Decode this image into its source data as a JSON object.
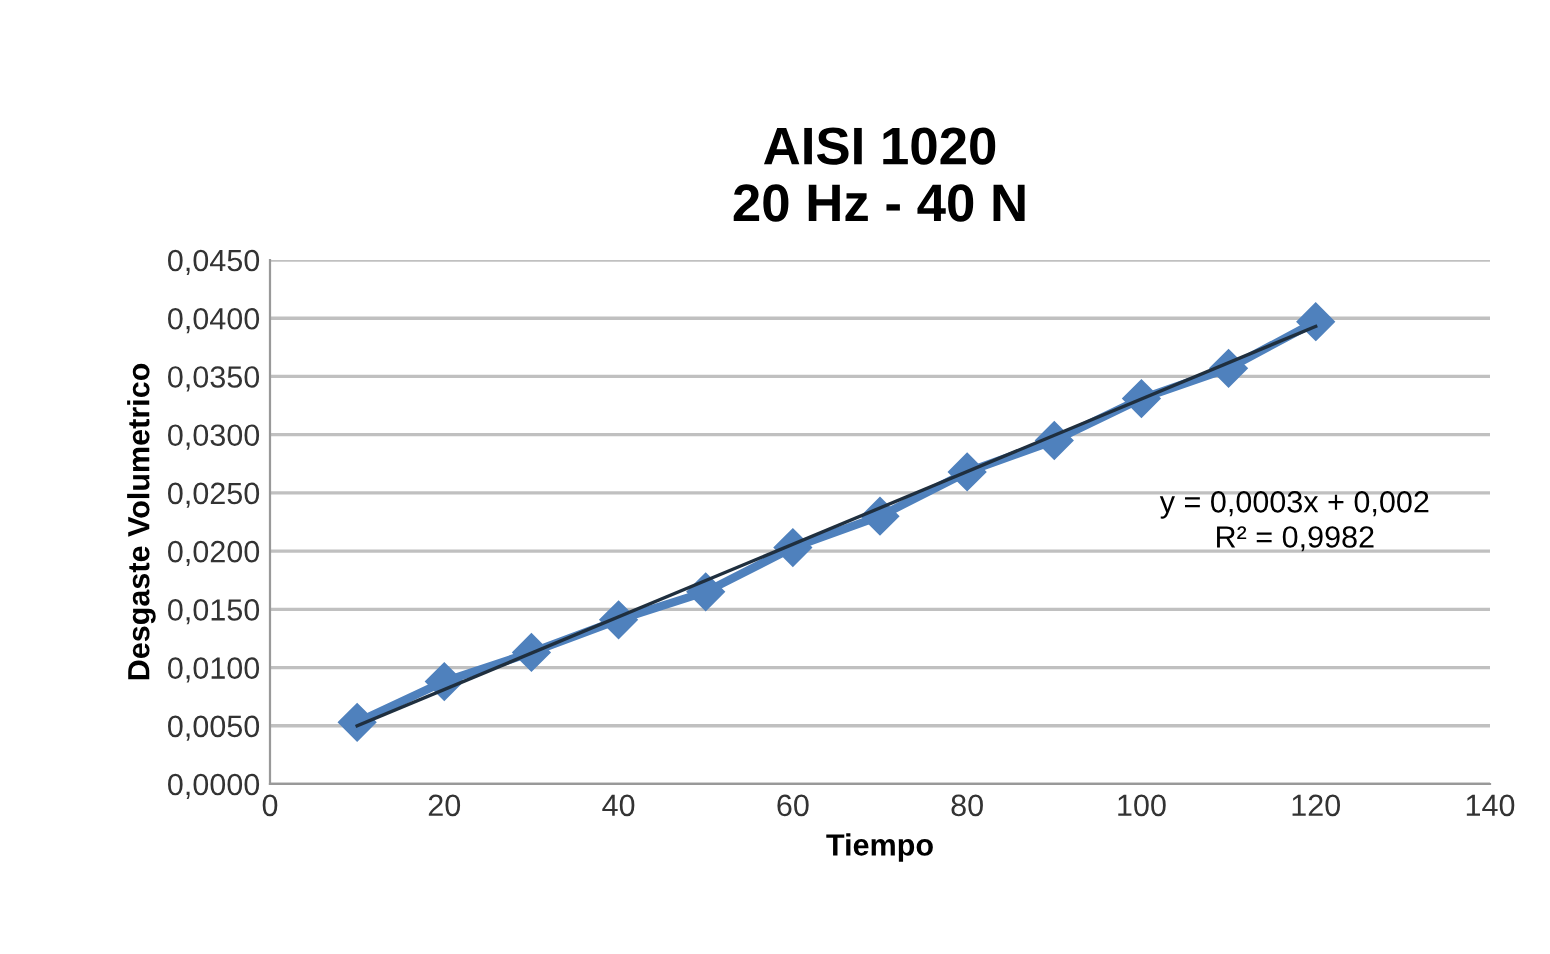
{
  "chart_data": {
    "type": "line",
    "title": "AISI 1020\n20 Hz - 40 N",
    "xlabel": "Tiempo",
    "ylabel": "Desgaste Volumetrico",
    "series": [
      {
        "color": "#4f81bd",
        "marker": "diamond",
        "x": [
          10,
          20,
          30,
          40,
          50,
          60,
          70,
          80,
          90,
          100,
          110,
          120
        ],
        "values": [
          0.0053,
          0.0088,
          0.0113,
          0.0141,
          0.0165,
          0.0203,
          0.023,
          0.0268,
          0.0295,
          0.0331,
          0.0357,
          0.0397
        ]
      },
      {
        "type": "line",
        "color": "#1f2f3f",
        "marker": "none",
        "x": [
          10,
          120
        ],
        "values": [
          0.005,
          0.0393
        ]
      }
    ],
    "xlim": [
      0,
      140
    ],
    "xticks": [
      0,
      20,
      40,
      60,
      80,
      100,
      120,
      140
    ],
    "ylim": [
      0,
      0.045
    ],
    "yticks": [
      {
        "value": 0,
        "label": "0,0000"
      },
      {
        "value": 0.005,
        "label": "0,0050"
      },
      {
        "value": 0.01,
        "label": "0,0100"
      },
      {
        "value": 0.015,
        "label": "0,0150"
      },
      {
        "value": 0.02,
        "label": "0,0200"
      },
      {
        "value": 0.025,
        "label": "0,0250"
      },
      {
        "value": 0.03,
        "label": "0,0300"
      },
      {
        "value": 0.035,
        "label": "0,0350"
      },
      {
        "value": 0.04,
        "label": "0,0400"
      },
      {
        "value": 0.045,
        "label": "0,0450"
      }
    ],
    "grid": "y",
    "legend": false,
    "annotations": [
      "y = 0,0003x + 0,002\nR² = 0,9982"
    ]
  }
}
